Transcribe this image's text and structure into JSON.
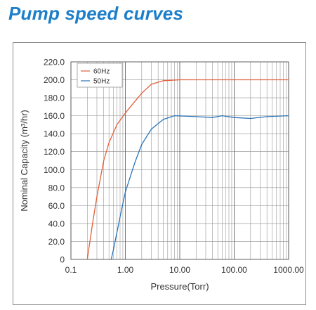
{
  "page": {
    "title": "Pump speed curves"
  },
  "colors": {
    "title": "#1d7fc9",
    "series_60": "#e0613b",
    "series_50": "#2c74b7",
    "grid": "#8f8f8f",
    "axis": "#333333"
  },
  "chart_data": {
    "type": "line",
    "xlabel": "Pressure(Torr)",
    "ylabel": "Nominal Capacity (m³/hr)",
    "xscale": "log",
    "xlim": [
      0.1,
      1000
    ],
    "ylim": [
      0,
      220
    ],
    "grid": true,
    "legend_position": "top-left",
    "x_ticks": [
      {
        "value": 0.1,
        "label": "0.1"
      },
      {
        "value": 1,
        "label": "1.00"
      },
      {
        "value": 10,
        "label": "10.00"
      },
      {
        "value": 100,
        "label": "100.00"
      },
      {
        "value": 1000,
        "label": "1000.00"
      }
    ],
    "y_ticks": [
      {
        "value": 0,
        "label": "0"
      },
      {
        "value": 20,
        "label": "20.0"
      },
      {
        "value": 40,
        "label": "40.0"
      },
      {
        "value": 60,
        "label": "60.0"
      },
      {
        "value": 80,
        "label": "80.0"
      },
      {
        "value": 100,
        "label": "100.0"
      },
      {
        "value": 120,
        "label": "120.0"
      },
      {
        "value": 140,
        "label": "140.0"
      },
      {
        "value": 160,
        "label": "160.0"
      },
      {
        "value": 180,
        "label": "180.0"
      },
      {
        "value": 200,
        "label": "200.0"
      },
      {
        "value": 220,
        "label": "220.0"
      }
    ],
    "series": [
      {
        "name": "60Hz",
        "color": "#e0613b",
        "points": [
          [
            0.2,
            0
          ],
          [
            0.25,
            40
          ],
          [
            0.3,
            70
          ],
          [
            0.4,
            110
          ],
          [
            0.5,
            130
          ],
          [
            0.7,
            150
          ],
          [
            1.0,
            163
          ],
          [
            1.5,
            176
          ],
          [
            2.0,
            185
          ],
          [
            3.0,
            195
          ],
          [
            5.0,
            199
          ],
          [
            10.0,
            200
          ],
          [
            100.0,
            200
          ],
          [
            1000.0,
            200
          ]
        ]
      },
      {
        "name": "50Hz",
        "color": "#2c74b7",
        "points": [
          [
            0.55,
            0
          ],
          [
            0.6,
            10
          ],
          [
            0.7,
            30
          ],
          [
            0.85,
            55
          ],
          [
            1.0,
            75
          ],
          [
            1.5,
            108
          ],
          [
            2.0,
            128
          ],
          [
            3.0,
            145
          ],
          [
            5.0,
            156
          ],
          [
            8.0,
            160
          ],
          [
            20.0,
            159
          ],
          [
            40.0,
            158
          ],
          [
            60.0,
            160
          ],
          [
            100.0,
            158
          ],
          [
            200.0,
            157
          ],
          [
            400.0,
            159
          ],
          [
            1000.0,
            160
          ]
        ]
      }
    ]
  }
}
